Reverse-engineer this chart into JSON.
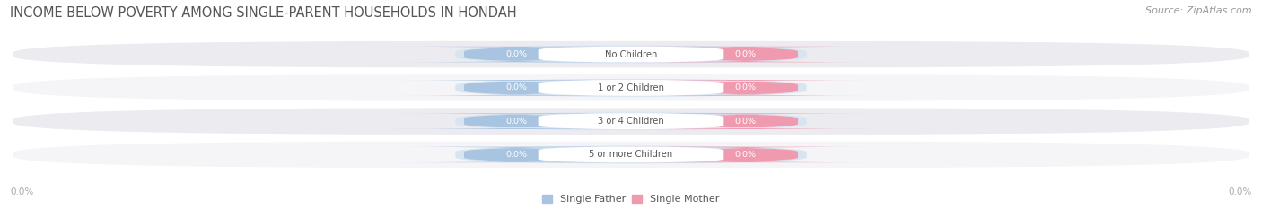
{
  "title": "INCOME BELOW POVERTY AMONG SINGLE-PARENT HOUSEHOLDS IN HONDAH",
  "source": "Source: ZipAtlas.com",
  "categories": [
    "No Children",
    "1 or 2 Children",
    "3 or 4 Children",
    "5 or more Children"
  ],
  "single_father_values": [
    0.0,
    0.0,
    0.0,
    0.0
  ],
  "single_mother_values": [
    0.0,
    0.0,
    0.0,
    0.0
  ],
  "father_color": "#a8c4e0",
  "mother_color": "#f09ab0",
  "row_bg_color": "#ebebf0",
  "row_bg_color2": "#f5f5f8",
  "title_fontsize": 10.5,
  "source_fontsize": 8,
  "left_label": "0.0%",
  "right_label": "0.0%",
  "legend_father": "Single Father",
  "legend_mother": "Single Mother",
  "background_color": "#ffffff",
  "center_label_bg": "#ffffff",
  "text_color": "#555555",
  "value_text_color": "#ffffff",
  "axis_label_color": "#aaaaaa"
}
